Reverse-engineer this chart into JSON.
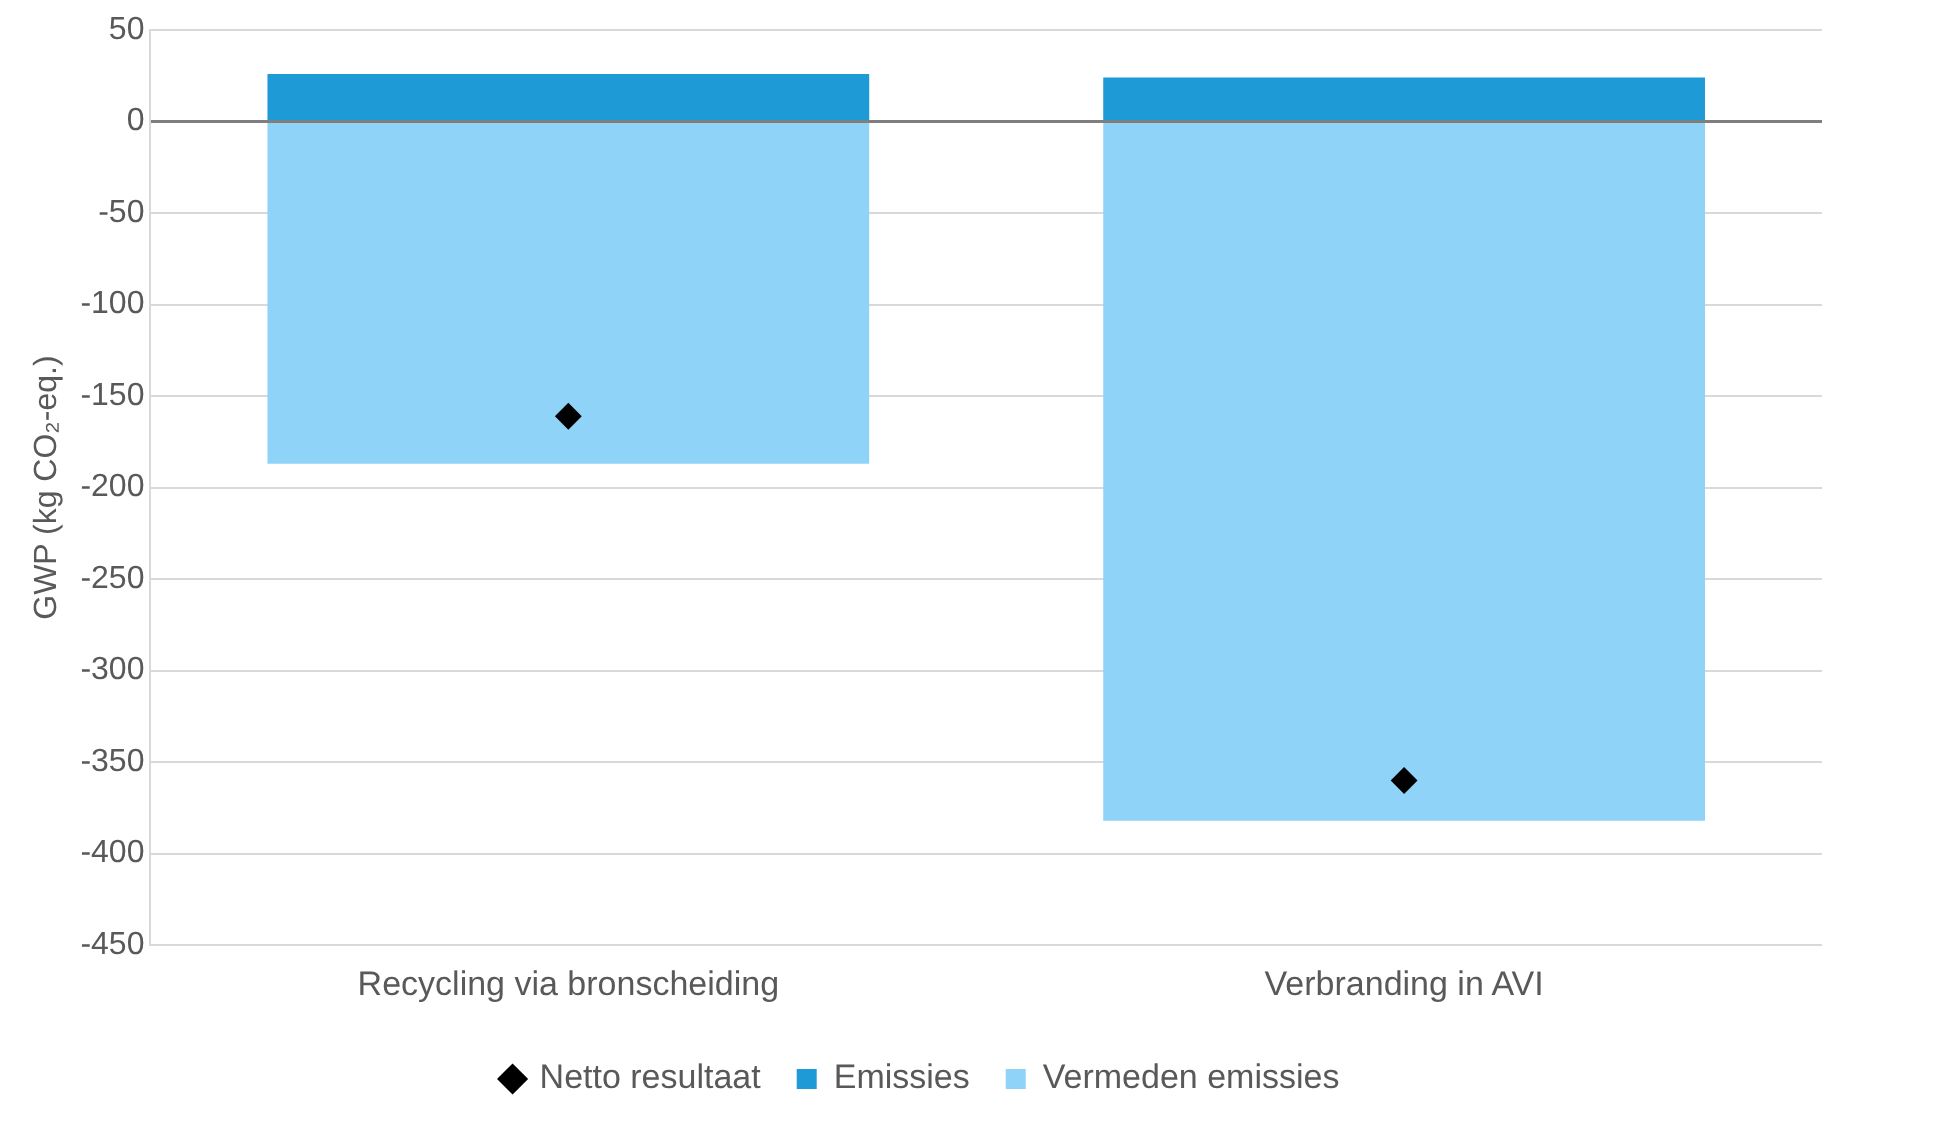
{
  "chart_data": {
    "type": "bar",
    "stacked": true,
    "ylabel": "GWP (kg CO₂-eq.)",
    "categories": [
      "Recycling via bronscheiding",
      "Verbranding in AVI"
    ],
    "series": [
      {
        "name": "Emissies",
        "color": "#1e9ad6",
        "values": [
          26,
          24
        ]
      },
      {
        "name": "Vermeden emissies",
        "color": "#8fd3f9",
        "values": [
          -187,
          -382
        ]
      },
      {
        "name": "Netto resultaat",
        "type": "scatter",
        "color": "#000000",
        "marker": "diamond",
        "x": [
          "Recycling via bronscheiding",
          "Verbranding in AVI"
        ],
        "values": [
          -161,
          -360
        ]
      }
    ],
    "ylim": [
      -450,
      50
    ],
    "yticks": [
      50,
      0,
      -50,
      -100,
      -150,
      -200,
      -250,
      -300,
      -350,
      -400,
      -450
    ],
    "grid": "y",
    "legend": "bottom"
  }
}
